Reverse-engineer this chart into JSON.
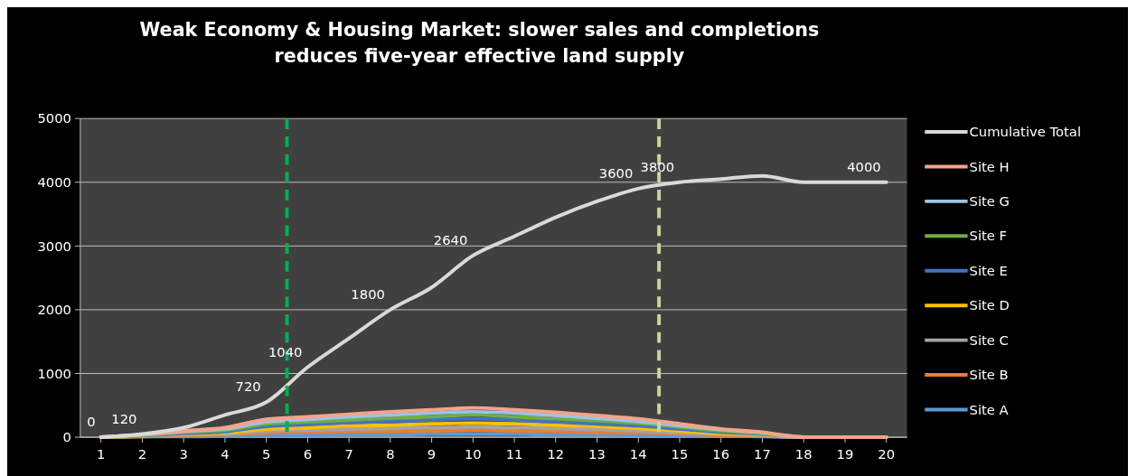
{
  "chart_data": {
    "type": "line",
    "title": "Weak Economy & Housing Market: slower sales and completions\nreduces five-year effective land supply",
    "x": [
      1,
      2,
      3,
      4,
      5,
      6,
      7,
      8,
      9,
      10,
      11,
      12,
      13,
      14,
      15,
      16,
      17,
      18,
      19,
      20
    ],
    "xlim": [
      0.5,
      20.5
    ],
    "xticks": [
      1,
      2,
      3,
      4,
      5,
      6,
      7,
      8,
      9,
      10,
      11,
      12,
      13,
      14,
      15,
      16,
      17,
      18,
      19,
      20
    ],
    "ylim": [
      0,
      5000
    ],
    "yticks": [
      0,
      1000,
      2000,
      3000,
      4000,
      5000
    ],
    "grid": "y",
    "legend": "right",
    "line_style": "solid",
    "series": [
      {
        "name": "Cumulative Total",
        "color": "#d9d9d9",
        "values": [
          0,
          50,
          150,
          350,
          550,
          1100,
          1550,
          2000,
          2350,
          2850,
          3150,
          3450,
          3700,
          3900,
          4000,
          4050,
          4100,
          4000,
          4000,
          4000
        ]
      },
      {
        "name": "Site H",
        "color": "#f4a48a",
        "values": [
          0,
          40,
          100,
          150,
          280,
          320,
          360,
          400,
          430,
          460,
          430,
          390,
          340,
          290,
          210,
          130,
          80,
          0,
          0,
          0
        ]
      },
      {
        "name": "Site G",
        "color": "#9dc3e6",
        "values": [
          0,
          40,
          90,
          130,
          240,
          280,
          320,
          350,
          380,
          400,
          380,
          340,
          300,
          250,
          180,
          120,
          70,
          0,
          0,
          0
        ]
      },
      {
        "name": "Site F",
        "color": "#70ad47",
        "values": [
          0,
          30,
          80,
          110,
          210,
          240,
          270,
          300,
          320,
          350,
          320,
          290,
          260,
          220,
          160,
          100,
          60,
          0,
          null,
          null
        ]
      },
      {
        "name": "Site E",
        "color": "#4472c4",
        "values": [
          0,
          25,
          60,
          90,
          170,
          200,
          230,
          250,
          270,
          290,
          270,
          240,
          210,
          180,
          130,
          80,
          50,
          0,
          null,
          null
        ]
      },
      {
        "name": "Site D",
        "color": "#ffc000",
        "values": [
          0,
          20,
          50,
          70,
          130,
          150,
          180,
          190,
          210,
          220,
          210,
          190,
          170,
          140,
          100,
          60,
          40,
          0,
          null,
          null
        ]
      },
      {
        "name": "Site C",
        "color": "#a5a5a5",
        "values": [
          0,
          20,
          40,
          50,
          100,
          110,
          130,
          140,
          150,
          160,
          150,
          140,
          120,
          100,
          70,
          50,
          30,
          0,
          0,
          0
        ]
      },
      {
        "name": "Site B",
        "color": "#ed7d31",
        "values": [
          0,
          10,
          30,
          40,
          70,
          80,
          90,
          90,
          100,
          110,
          100,
          90,
          80,
          70,
          50,
          30,
          20,
          0,
          null,
          null
        ]
      },
      {
        "name": "Site A",
        "color": "#5b9bd5",
        "values": [
          0,
          10,
          10,
          20,
          30,
          30,
          40,
          40,
          50,
          50,
          50,
          40,
          40,
          30,
          20,
          20,
          10,
          0,
          null,
          null
        ]
      }
    ],
    "ref_lines": [
      {
        "axis": "x",
        "value": 5.5,
        "color": "#00b050",
        "line_style": "dashed"
      },
      {
        "axis": "x",
        "value": 14.5,
        "color": "#c4d79b",
        "line_style": "dashed"
      }
    ],
    "annotations": [
      {
        "text": "0",
        "x": 1,
        "y": 0
      },
      {
        "text": "120",
        "x": 2,
        "y": 50
      },
      {
        "text": "720",
        "x": 5,
        "y": 550
      },
      {
        "text": "1040",
        "x": 6,
        "y": 1100
      },
      {
        "text": "1800",
        "x": 8,
        "y": 2000
      },
      {
        "text": "2640",
        "x": 10,
        "y": 2850
      },
      {
        "text": "3600",
        "x": 14,
        "y": 3900
      },
      {
        "text": "3800",
        "x": 15,
        "y": 4000
      },
      {
        "text": "4000",
        "x": 20,
        "y": 4000
      }
    ]
  }
}
